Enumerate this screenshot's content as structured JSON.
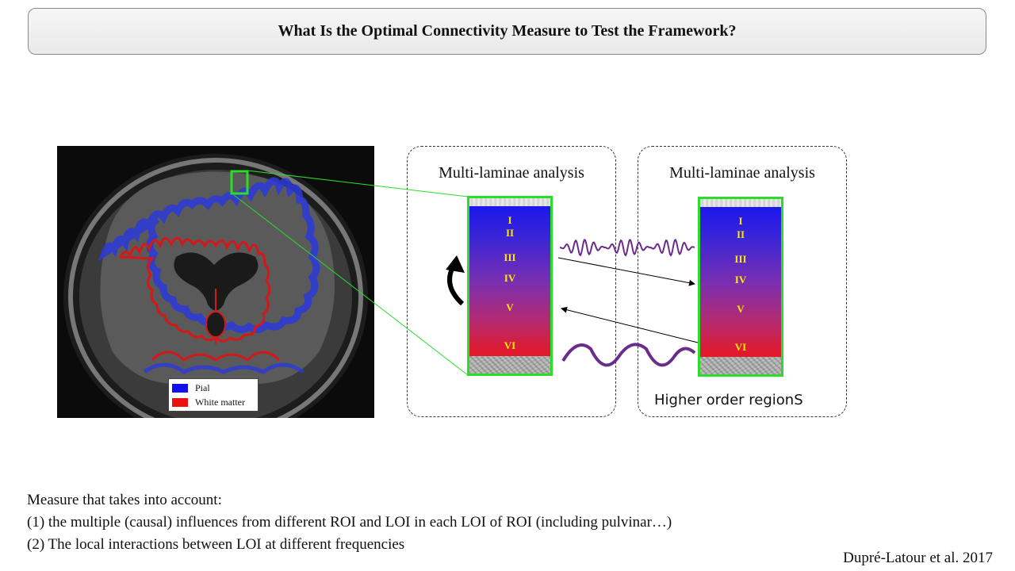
{
  "title": "What Is the Optimal Connectivity Measure to Test the Framework?",
  "legend": {
    "items": [
      {
        "label": "Pial",
        "color": "#1010ee"
      },
      {
        "label": "White matter",
        "color": "#ee1010"
      }
    ]
  },
  "panels": [
    {
      "title": "Multi-laminae analysis",
      "footer": ""
    },
    {
      "title": "Multi-laminae analysis",
      "footer": "Higher order regionS"
    }
  ],
  "layers": [
    "I",
    "II",
    "III",
    "IV",
    "V",
    "VI"
  ],
  "colors": {
    "highlight": "#29dd29",
    "wave": "#6a2d8c",
    "layer_text": "#ffe800"
  },
  "bottom_text": {
    "line1": "Measure that takes into account:",
    "line2": "(1)  the multiple (causal) influences from different ROI and LOI in each LOI of  ROI (including pulvinar…)",
    "line3": "(2)  The local interactions between LOI at different frequencies"
  },
  "citation": "Dupré-Latour et al. 2017"
}
